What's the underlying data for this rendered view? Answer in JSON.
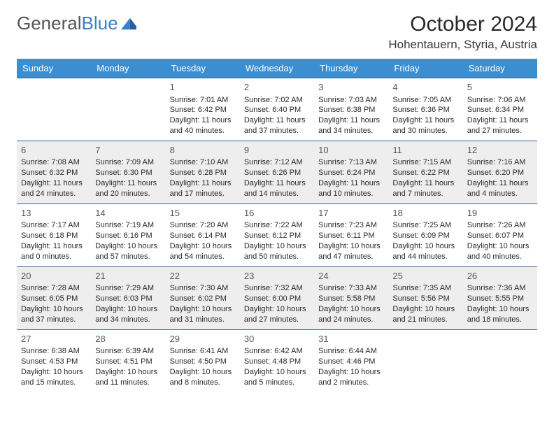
{
  "logo": {
    "part1": "General",
    "part2": "Blue"
  },
  "title": "October 2024",
  "location": "Hohentauern, Styria, Austria",
  "colors": {
    "headerBg": "#3b8ed0",
    "headerText": "#ffffff",
    "border": "#2f5f8f",
    "shaded": "#eeeeee",
    "text": "#2a2a2a",
    "logoGray": "#555555",
    "logoBlue": "#3b7fc4"
  },
  "daysOfWeek": [
    "Sunday",
    "Monday",
    "Tuesday",
    "Wednesday",
    "Thursday",
    "Friday",
    "Saturday"
  ],
  "startOffset": 2,
  "days": [
    {
      "n": 1,
      "sunrise": "7:01 AM",
      "sunset": "6:42 PM",
      "daylight": "11 hours and 40 minutes."
    },
    {
      "n": 2,
      "sunrise": "7:02 AM",
      "sunset": "6:40 PM",
      "daylight": "11 hours and 37 minutes."
    },
    {
      "n": 3,
      "sunrise": "7:03 AM",
      "sunset": "6:38 PM",
      "daylight": "11 hours and 34 minutes."
    },
    {
      "n": 4,
      "sunrise": "7:05 AM",
      "sunset": "6:36 PM",
      "daylight": "11 hours and 30 minutes."
    },
    {
      "n": 5,
      "sunrise": "7:06 AM",
      "sunset": "6:34 PM",
      "daylight": "11 hours and 27 minutes."
    },
    {
      "n": 6,
      "sunrise": "7:08 AM",
      "sunset": "6:32 PM",
      "daylight": "11 hours and 24 minutes."
    },
    {
      "n": 7,
      "sunrise": "7:09 AM",
      "sunset": "6:30 PM",
      "daylight": "11 hours and 20 minutes."
    },
    {
      "n": 8,
      "sunrise": "7:10 AM",
      "sunset": "6:28 PM",
      "daylight": "11 hours and 17 minutes."
    },
    {
      "n": 9,
      "sunrise": "7:12 AM",
      "sunset": "6:26 PM",
      "daylight": "11 hours and 14 minutes."
    },
    {
      "n": 10,
      "sunrise": "7:13 AM",
      "sunset": "6:24 PM",
      "daylight": "11 hours and 10 minutes."
    },
    {
      "n": 11,
      "sunrise": "7:15 AM",
      "sunset": "6:22 PM",
      "daylight": "11 hours and 7 minutes."
    },
    {
      "n": 12,
      "sunrise": "7:16 AM",
      "sunset": "6:20 PM",
      "daylight": "11 hours and 4 minutes."
    },
    {
      "n": 13,
      "sunrise": "7:17 AM",
      "sunset": "6:18 PM",
      "daylight": "11 hours and 0 minutes."
    },
    {
      "n": 14,
      "sunrise": "7:19 AM",
      "sunset": "6:16 PM",
      "daylight": "10 hours and 57 minutes."
    },
    {
      "n": 15,
      "sunrise": "7:20 AM",
      "sunset": "6:14 PM",
      "daylight": "10 hours and 54 minutes."
    },
    {
      "n": 16,
      "sunrise": "7:22 AM",
      "sunset": "6:12 PM",
      "daylight": "10 hours and 50 minutes."
    },
    {
      "n": 17,
      "sunrise": "7:23 AM",
      "sunset": "6:11 PM",
      "daylight": "10 hours and 47 minutes."
    },
    {
      "n": 18,
      "sunrise": "7:25 AM",
      "sunset": "6:09 PM",
      "daylight": "10 hours and 44 minutes."
    },
    {
      "n": 19,
      "sunrise": "7:26 AM",
      "sunset": "6:07 PM",
      "daylight": "10 hours and 40 minutes."
    },
    {
      "n": 20,
      "sunrise": "7:28 AM",
      "sunset": "6:05 PM",
      "daylight": "10 hours and 37 minutes."
    },
    {
      "n": 21,
      "sunrise": "7:29 AM",
      "sunset": "6:03 PM",
      "daylight": "10 hours and 34 minutes."
    },
    {
      "n": 22,
      "sunrise": "7:30 AM",
      "sunset": "6:02 PM",
      "daylight": "10 hours and 31 minutes."
    },
    {
      "n": 23,
      "sunrise": "7:32 AM",
      "sunset": "6:00 PM",
      "daylight": "10 hours and 27 minutes."
    },
    {
      "n": 24,
      "sunrise": "7:33 AM",
      "sunset": "5:58 PM",
      "daylight": "10 hours and 24 minutes."
    },
    {
      "n": 25,
      "sunrise": "7:35 AM",
      "sunset": "5:56 PM",
      "daylight": "10 hours and 21 minutes."
    },
    {
      "n": 26,
      "sunrise": "7:36 AM",
      "sunset": "5:55 PM",
      "daylight": "10 hours and 18 minutes."
    },
    {
      "n": 27,
      "sunrise": "6:38 AM",
      "sunset": "4:53 PM",
      "daylight": "10 hours and 15 minutes."
    },
    {
      "n": 28,
      "sunrise": "6:39 AM",
      "sunset": "4:51 PM",
      "daylight": "10 hours and 11 minutes."
    },
    {
      "n": 29,
      "sunrise": "6:41 AM",
      "sunset": "4:50 PM",
      "daylight": "10 hours and 8 minutes."
    },
    {
      "n": 30,
      "sunrise": "6:42 AM",
      "sunset": "4:48 PM",
      "daylight": "10 hours and 5 minutes."
    },
    {
      "n": 31,
      "sunrise": "6:44 AM",
      "sunset": "4:46 PM",
      "daylight": "10 hours and 2 minutes."
    }
  ],
  "labels": {
    "sunrise": "Sunrise: ",
    "sunset": "Sunset: ",
    "daylight": "Daylight: "
  }
}
